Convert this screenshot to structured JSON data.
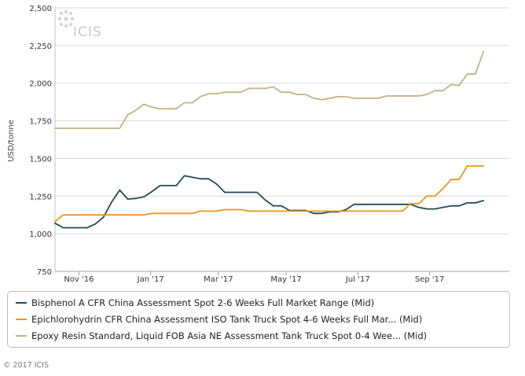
{
  "chart_data": {
    "type": "line",
    "title": "",
    "xlabel": "",
    "ylabel": "USD/tonne",
    "ylim": [
      750,
      2500
    ],
    "yticks": [
      "2,500",
      "2,250",
      "2,000",
      "1,750",
      "1,500",
      "1,250",
      "1,000",
      "750"
    ],
    "ytick_values": [
      2500,
      2250,
      2000,
      1750,
      1500,
      1250,
      1000,
      750
    ],
    "x_range": [
      0,
      57
    ],
    "xticks": [
      {
        "label": "Nov '16",
        "x": 3
      },
      {
        "label": "Jan '17",
        "x": 12
      },
      {
        "label": "Mar '17",
        "x": 20.5
      },
      {
        "label": "May '17",
        "x": 29
      },
      {
        "label": "Jul '17",
        "x": 38
      },
      {
        "label": "Sep '17",
        "x": 47
      }
    ],
    "series": [
      {
        "name": "Bisphenol A CFR China Assessment Spot 2-6 Weeks Full Market Range (Mid)",
        "color": "#234a55",
        "values": [
          1070,
          1040,
          1040,
          1040,
          1040,
          1065,
          1110,
          1210,
          1290,
          1230,
          1235,
          1245,
          1280,
          1320,
          1320,
          1320,
          1385,
          1375,
          1365,
          1365,
          1330,
          1275,
          1275,
          1275,
          1275,
          1275,
          1225,
          1185,
          1185,
          1155,
          1155,
          1155,
          1135,
          1135,
          1145,
          1145,
          1160,
          1195,
          1195,
          1195,
          1195,
          1195,
          1195,
          1195,
          1195,
          1175,
          1165,
          1165,
          1175,
          1185,
          1185,
          1205,
          1205,
          1220
        ]
      },
      {
        "name": "Epichlorohydrin CFR China Assessment ISO Tank Truck Spot 4-6 Weeks Full Mar... (Mid)",
        "color": "#e8961e",
        "values": [
          1080,
          1125,
          1125,
          1125,
          1125,
          1125,
          1125,
          1125,
          1125,
          1125,
          1125,
          1125,
          1135,
          1135,
          1135,
          1135,
          1135,
          1135,
          1150,
          1150,
          1150,
          1160,
          1160,
          1160,
          1150,
          1150,
          1150,
          1150,
          1150,
          1150,
          1150,
          1150,
          1150,
          1150,
          1150,
          1150,
          1150,
          1150,
          1150,
          1150,
          1150,
          1150,
          1150,
          1150,
          1200,
          1200,
          1250,
          1250,
          1300,
          1360,
          1360,
          1450,
          1450,
          1450
        ]
      },
      {
        "name": "Epoxy Resin Standard, Liquid FOB Asia NE Assessment Tank Truck Spot 0-4 Wee... (Mid)",
        "color": "#c2b184",
        "values": [
          1700,
          1700,
          1700,
          1700,
          1700,
          1700,
          1700,
          1700,
          1700,
          1790,
          1820,
          1860,
          1840,
          1830,
          1830,
          1830,
          1870,
          1870,
          1910,
          1930,
          1930,
          1940,
          1940,
          1940,
          1965,
          1965,
          1965,
          1975,
          1940,
          1940,
          1925,
          1925,
          1900,
          1890,
          1900,
          1910,
          1910,
          1900,
          1900,
          1900,
          1900,
          1915,
          1915,
          1915,
          1915,
          1915,
          1925,
          1950,
          1950,
          1990,
          1985,
          2060,
          2060,
          2210
        ]
      }
    ],
    "watermark": "ICIS",
    "legend_position": "bottom"
  },
  "footer": {
    "copyright": "© 2017 ICIS"
  }
}
